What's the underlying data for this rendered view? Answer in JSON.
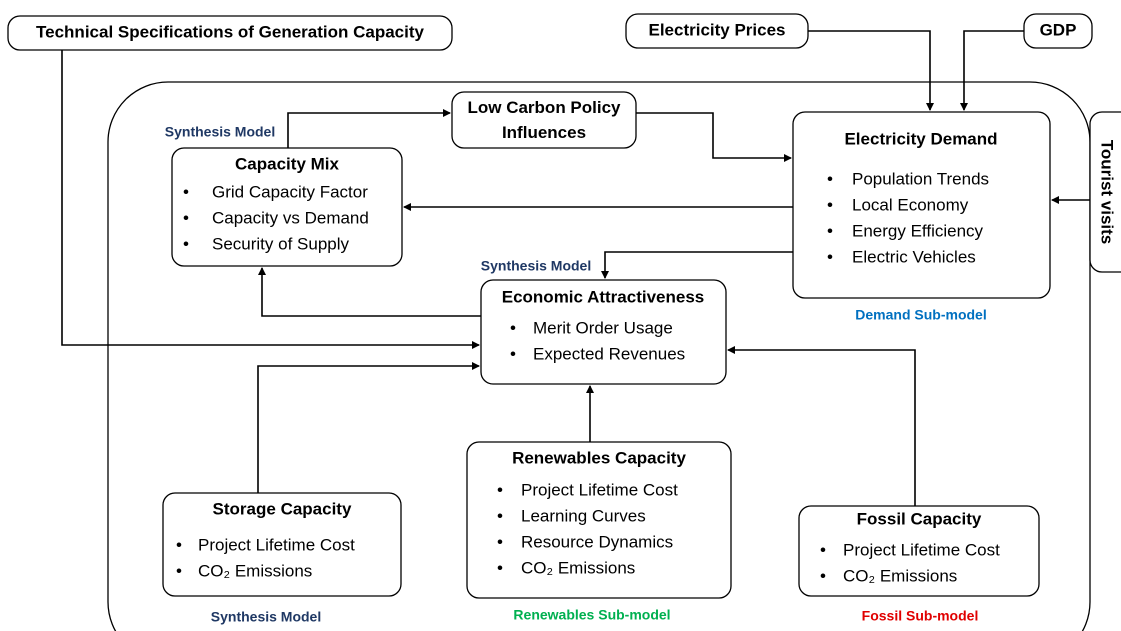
{
  "nodes": [
    {
      "title": "Technical Specifications of Generation Capacity"
    },
    {
      "title": "Electricity Prices"
    },
    {
      "title": "GDP"
    },
    {
      "title": "Tourist visits"
    },
    {
      "title": "Low Carbon Policy Influences"
    },
    {
      "title": "Capacity Mix",
      "bullets": [
        "Grid Capacity Factor",
        "Capacity vs Demand",
        "Security of Supply"
      ]
    },
    {
      "title": "Electricity Demand",
      "bullets": [
        "Population Trends",
        "Local Economy",
        "Energy Efficiency",
        "Electric Vehicles"
      ]
    },
    {
      "title": "Economic Attractiveness",
      "bullets": [
        "Merit Order Usage",
        "Expected Revenues"
      ]
    },
    {
      "title": "Storage Capacity",
      "bullets": [
        "Project Lifetime Cost",
        "CO₂ Emissions"
      ]
    },
    {
      "title": "Renewables Capacity",
      "bullets": [
        "Project Lifetime Cost",
        "Learning Curves",
        "Resource Dynamics",
        "CO₂ Emissions"
      ]
    },
    {
      "title": "Fossil Capacity",
      "bullets": [
        "Project Lifetime Cost",
        "CO₂ Emissions"
      ]
    }
  ],
  "labels": [
    "Synthesis Model",
    "Synthesis Model",
    "Demand Sub-model",
    "Synthesis Model",
    "Renewables Sub-model",
    "Fossil Sub-model"
  ],
  "bullet": "•"
}
